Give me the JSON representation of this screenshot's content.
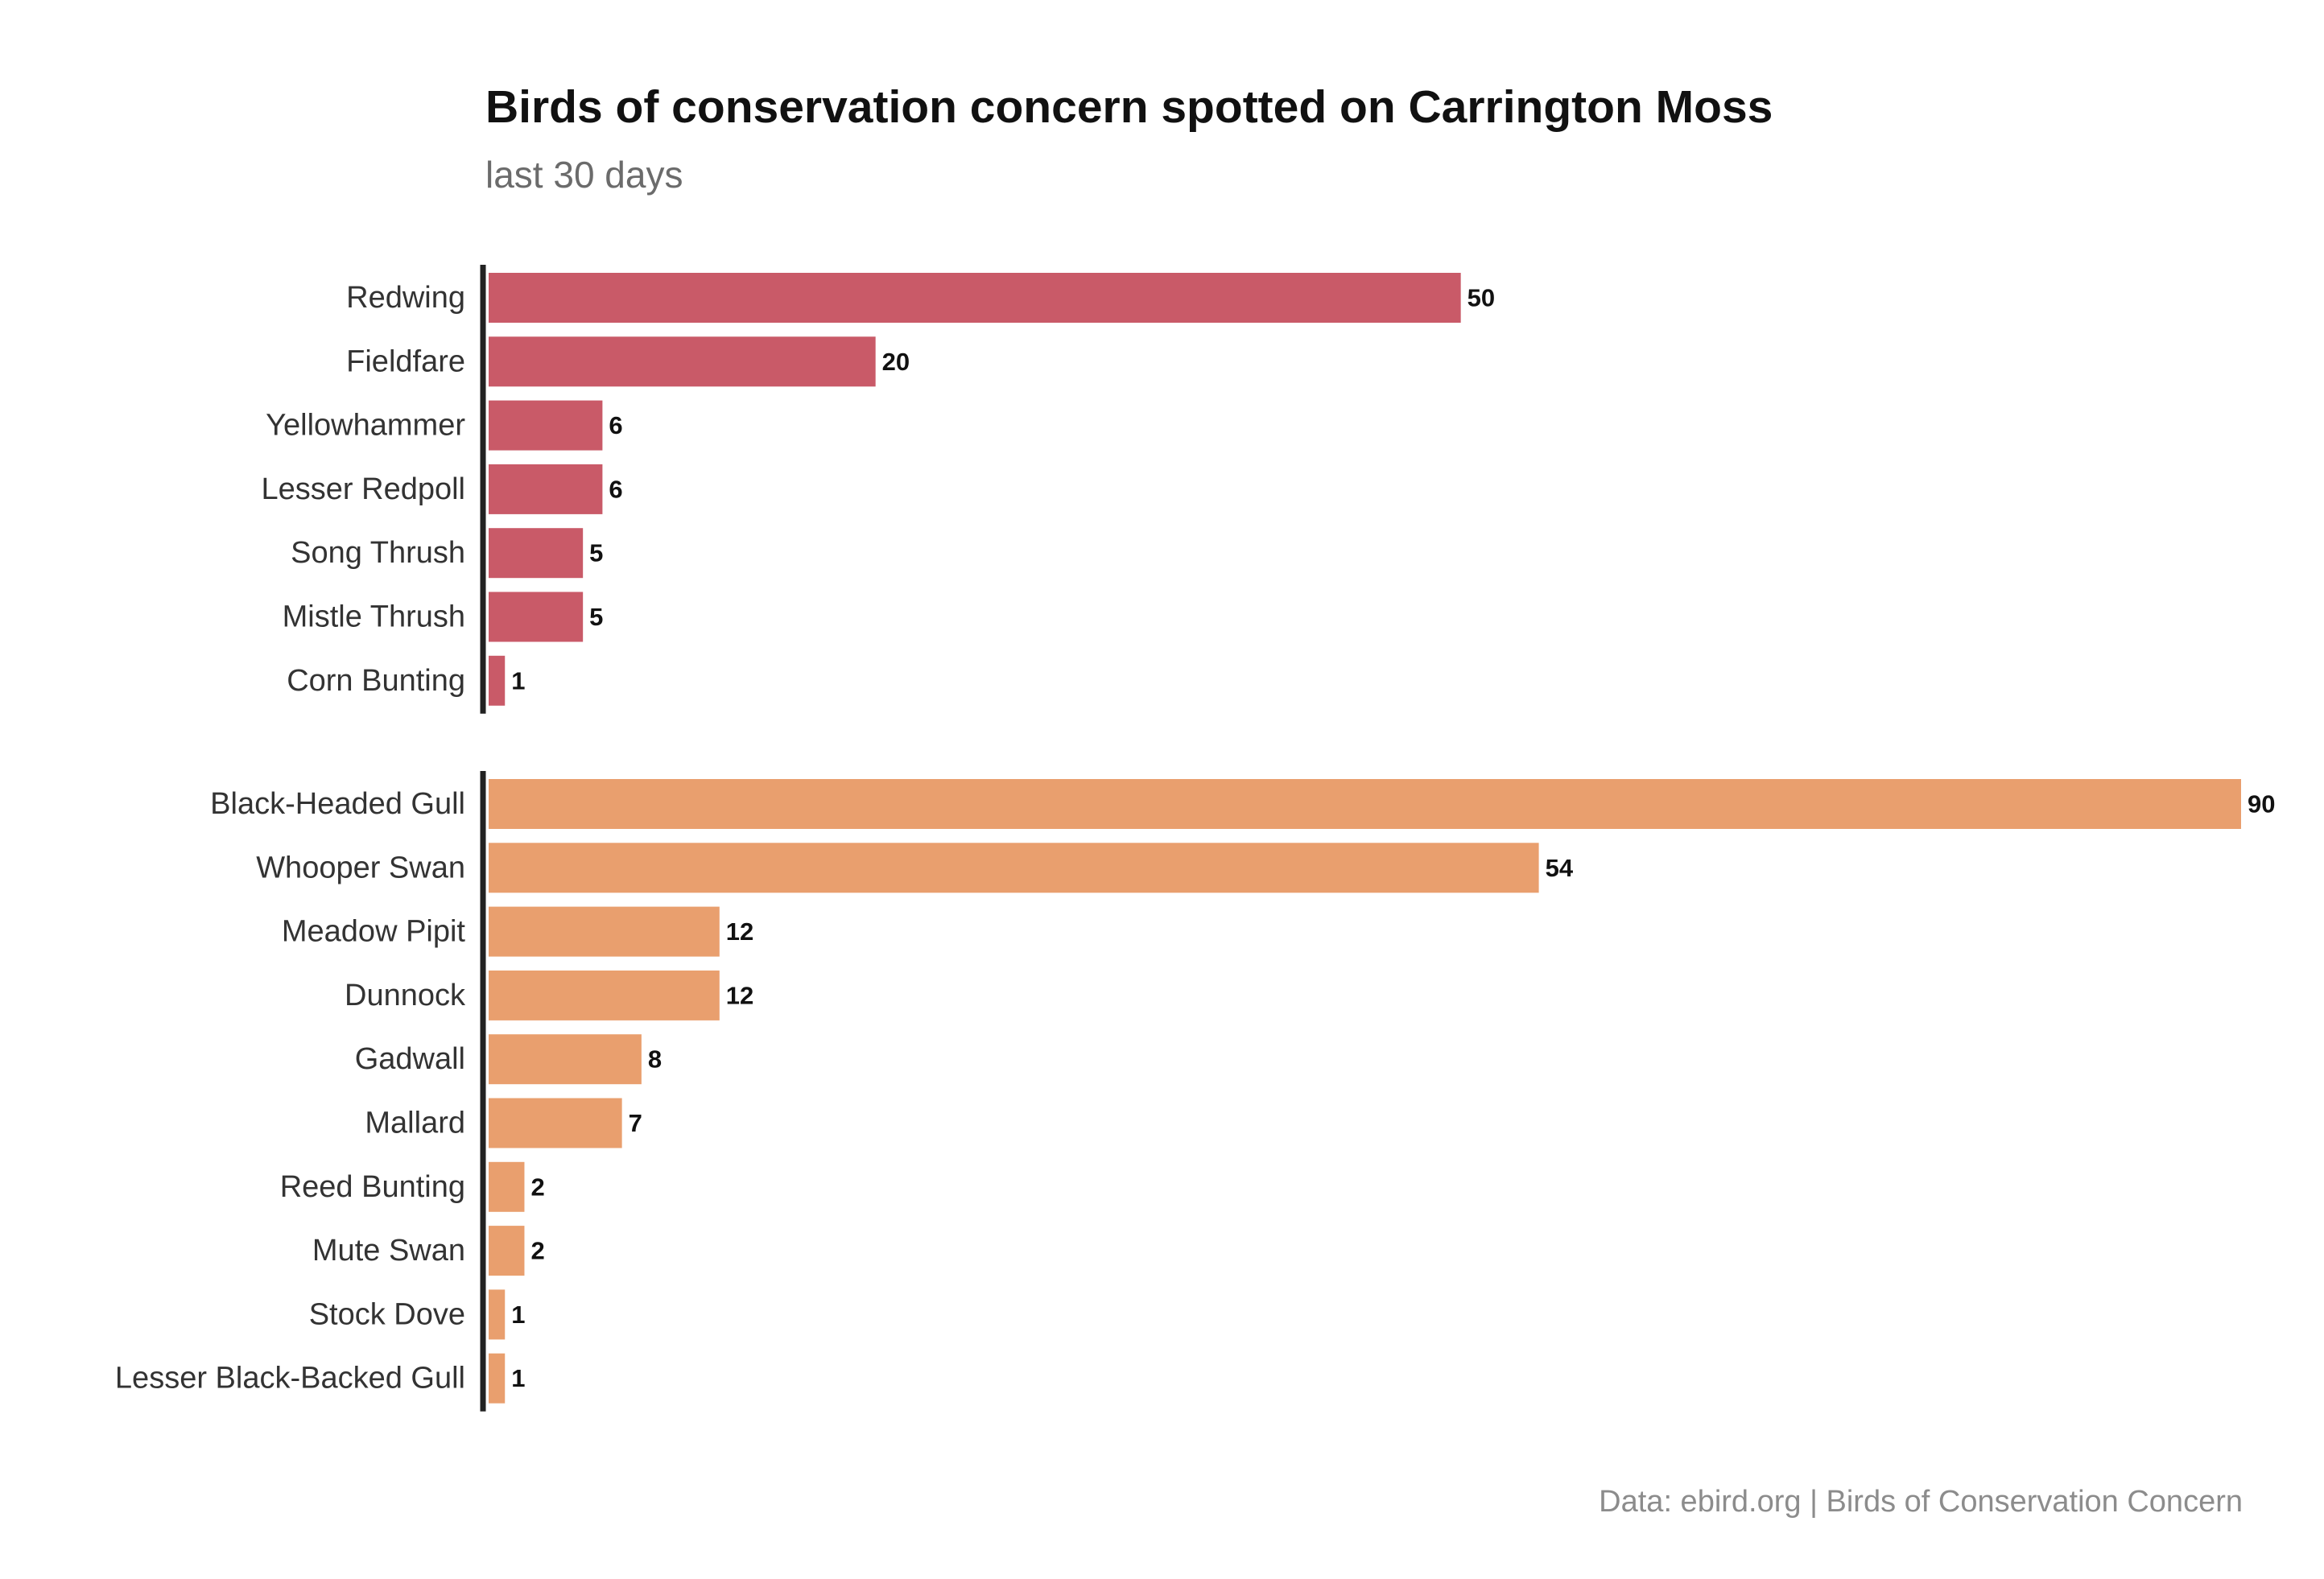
{
  "chart_data": {
    "type": "bar",
    "orientation": "horizontal",
    "title": "Birds of conservation concern spotted on Carrington Moss",
    "subtitle": "last 30 days",
    "caption": "Data: ebird.org | Birds of Conservation Concern",
    "xlabel": "",
    "ylabel": "",
    "xlim": [
      0,
      90
    ],
    "grid": false,
    "groups": [
      {
        "color": "#c95a68",
        "categories": [
          "Redwing",
          "Fieldfare",
          "Yellowhammer",
          "Lesser Redpoll",
          "Song Thrush",
          "Mistle Thrush",
          "Corn Bunting"
        ],
        "values": [
          50,
          20,
          6,
          6,
          5,
          5,
          1
        ]
      },
      {
        "color": "#e99f6e",
        "categories": [
          "Black-Headed Gull",
          "Whooper Swan",
          "Meadow Pipit",
          "Dunnock",
          "Gadwall",
          "Mallard",
          "Reed Bunting",
          "Mute Swan",
          "Stock Dove",
          "Lesser Black-Backed Gull"
        ],
        "values": [
          90,
          54,
          12,
          12,
          8,
          7,
          2,
          2,
          1,
          1
        ]
      }
    ]
  }
}
